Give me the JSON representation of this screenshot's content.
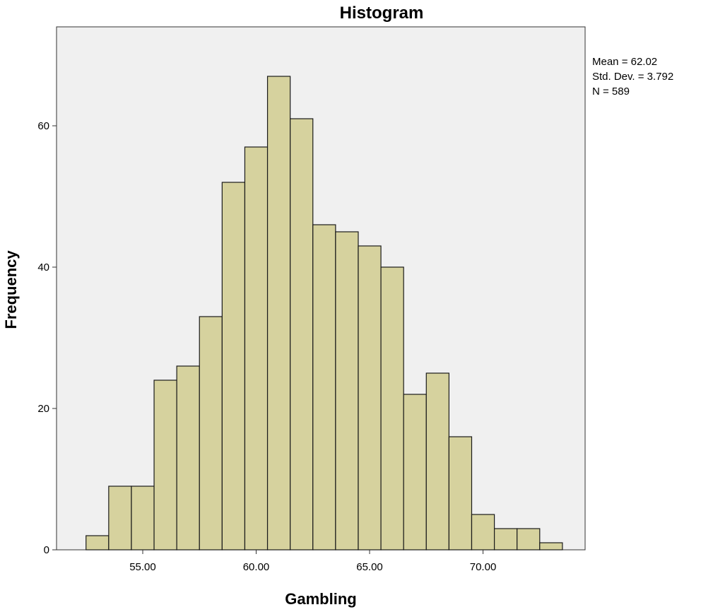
{
  "chart_data": {
    "type": "bar",
    "title": "Histogram",
    "xlabel": "Gambling",
    "ylabel": "Frequency",
    "xlim": [
      51.2,
      74.5
    ],
    "ylim": [
      0,
      74
    ],
    "bin_width": 1.0,
    "bin_starts": [
      52.5,
      53.5,
      54.5,
      55.5,
      56.5,
      57.5,
      58.5,
      59.5,
      60.5,
      61.5,
      62.5,
      63.5,
      64.5,
      65.5,
      66.5,
      67.5,
      68.5,
      69.5,
      70.5,
      71.5,
      72.5
    ],
    "values": [
      2,
      9,
      9,
      24,
      26,
      33,
      52,
      57,
      67,
      61,
      46,
      45,
      43,
      40,
      22,
      25,
      16,
      5,
      3,
      3,
      1
    ],
    "x_ticks": [
      55,
      60,
      65,
      70
    ],
    "x_tick_labels": [
      "55.00",
      "60.00",
      "65.00",
      "70.00"
    ],
    "y_ticks": [
      0,
      20,
      40,
      60
    ],
    "y_tick_labels": [
      "0",
      "20",
      "40",
      "60"
    ],
    "stats": [
      "Mean = 62.02",
      "Std. Dev. = 3.792",
      "N = 589"
    ],
    "grid": false,
    "legend": "none",
    "colors": {
      "bar_fill": "#d6d29e",
      "bar_stroke": "#1a1a1a",
      "plot_background": "#f0f0f0",
      "frame": "#333333"
    }
  }
}
